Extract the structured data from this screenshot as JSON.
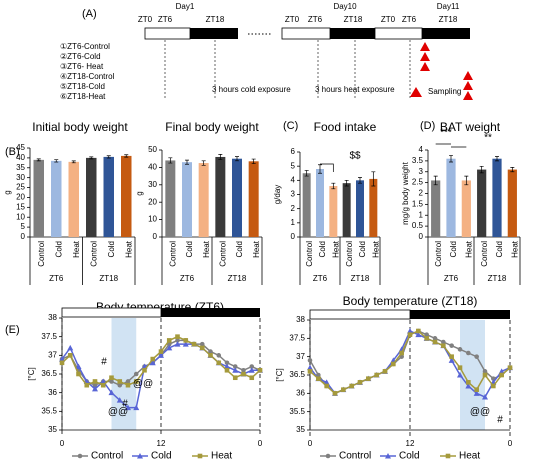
{
  "schedule": {
    "label": "(A)",
    "days": [
      "Day1",
      "Day10",
      "Day11"
    ],
    "zt_labels": [
      "ZT0",
      "ZT6",
      "ZT18",
      "ZT0",
      "ZT6",
      "ZT18",
      "ZT0",
      "ZT6",
      "ZT18"
    ],
    "groups": [
      "①ZT6-Control",
      "②ZT6-Cold",
      "③ZT6- Heat",
      "④ZT18-Control",
      "⑤ZT18-Cold",
      "⑥ZT18-Heat"
    ],
    "notes": [
      "3 hours cold exposure",
      "3 hours heat exposure"
    ],
    "legend": "Sampling"
  },
  "chart_data": [
    {
      "type": "bar",
      "panel": "(B)",
      "title": "Initial body weight",
      "y_label": "g",
      "categories": [
        "Control",
        "Cold",
        "Heat",
        "Control",
        "Cold",
        "Heat"
      ],
      "groups": [
        "ZT6",
        "ZT18"
      ],
      "values": [
        39,
        38.5,
        38,
        40,
        40.5,
        41
      ],
      "errors": [
        0.5,
        0.6,
        0.5,
        0.5,
        0.6,
        0.6
      ],
      "colors": [
        "#7f7f7f",
        "#9db8e0",
        "#f4b183",
        "#3a3a3a",
        "#2f5597",
        "#c55a11"
      ],
      "ylim": [
        0,
        45
      ],
      "yticks": [
        0,
        5,
        10,
        15,
        20,
        25,
        30,
        35,
        40,
        45
      ],
      "annotations": []
    },
    {
      "type": "bar",
      "title": "Final body weight",
      "y_label": "g",
      "categories": [
        "Control",
        "Cold",
        "Heat",
        "Control",
        "Cold",
        "Heat"
      ],
      "groups": [
        "ZT6",
        "ZT18"
      ],
      "values": [
        44,
        43,
        42.5,
        46,
        45,
        43.5
      ],
      "errors": [
        1.5,
        1.2,
        1.3,
        1.5,
        1.2,
        1.3
      ],
      "colors": [
        "#7f7f7f",
        "#9db8e0",
        "#f4b183",
        "#3a3a3a",
        "#2f5597",
        "#c55a11"
      ],
      "ylim": [
        0,
        50
      ],
      "yticks": [
        0,
        10,
        20,
        30,
        40,
        50
      ],
      "annotations": []
    },
    {
      "type": "bar",
      "panel": "(C)",
      "title": "Food intake",
      "y_label": "g/day",
      "categories": [
        "Control",
        "Cold",
        "Heat",
        "Control",
        "Cold",
        "Heat"
      ],
      "groups": [
        "ZT6",
        "ZT18"
      ],
      "values": [
        4.5,
        4.8,
        3.6,
        3.8,
        4.0,
        4.1
      ],
      "errors": [
        0.2,
        0.3,
        0.2,
        0.2,
        0.2,
        0.5
      ],
      "colors": [
        "#7f7f7f",
        "#9db8e0",
        "#f4b183",
        "#3a3a3a",
        "#2f5597",
        "#c55a11"
      ],
      "ylim": [
        0,
        6
      ],
      "yticks": [
        0,
        1,
        2,
        3,
        4,
        5,
        6
      ],
      "annotations": [
        "$$"
      ]
    },
    {
      "type": "bar",
      "panel": "(D)",
      "title": "BAT weight",
      "y_label": "mg/g body weight",
      "categories": [
        "Control",
        "Cold",
        "Heat",
        "Control",
        "Cold",
        "Heat"
      ],
      "groups": [
        "ZT6",
        "ZT18"
      ],
      "values": [
        2.6,
        3.6,
        2.6,
        3.1,
        3.6,
        3.1
      ],
      "errors": [
        0.2,
        0.15,
        0.2,
        0.15,
        0.1,
        0.1
      ],
      "colors": [
        "#7f7f7f",
        "#9db8e0",
        "#f4b183",
        "#3a3a3a",
        "#2f5597",
        "#c55a11"
      ],
      "ylim": [
        0,
        4
      ],
      "yticks": [
        0,
        0.5,
        1,
        1.5,
        2,
        2.5,
        3,
        3.5,
        4
      ],
      "annotations": [
        "***",
        "**"
      ]
    },
    {
      "type": "line",
      "panel": "(E)",
      "title": "Body temperature (ZT6)",
      "y_label": "[°C]",
      "x": [
        0,
        1,
        2,
        3,
        4,
        5,
        6,
        7,
        8,
        9,
        10,
        11,
        12,
        13,
        14,
        15,
        16,
        17,
        18,
        19,
        20,
        21,
        22,
        23,
        24
      ],
      "xlim": [
        0,
        24
      ],
      "xticks": [
        0,
        12,
        {
          "value": 24,
          "label": "0"
        }
      ],
      "ylim": [
        35,
        38
      ],
      "yticks": [
        35,
        35.5,
        36,
        36.5,
        37,
        37.5,
        38
      ],
      "exposure": [
        6,
        9
      ],
      "annotations": [
        "#",
        "@@",
        "@@",
        "#"
      ],
      "series": [
        {
          "name": "Control",
          "color": "#808080",
          "marker": "circle",
          "values": [
            36.9,
            37.0,
            36.6,
            36.3,
            36.2,
            36.3,
            36.3,
            36.2,
            36.3,
            36.5,
            36.7,
            36.8,
            37.0,
            37.3,
            37.4,
            37.4,
            37.3,
            37.3,
            37.1,
            37.0,
            36.8,
            36.7,
            36.6,
            36.7,
            36.6
          ]
        },
        {
          "name": "Cold",
          "color": "#5865d6",
          "marker": "triangle",
          "values": [
            36.9,
            37.2,
            36.7,
            36.3,
            36.1,
            36.3,
            36.0,
            35.8,
            35.6,
            35.6,
            36.7,
            36.8,
            37.0,
            37.2,
            37.3,
            37.3,
            37.3,
            37.2,
            37.0,
            36.8,
            36.7,
            36.6,
            36.5,
            36.6,
            36.6
          ]
        },
        {
          "name": "Heat",
          "color": "#a59a3c",
          "marker": "square",
          "values": [
            36.8,
            37.0,
            36.5,
            36.2,
            36.3,
            36.2,
            36.4,
            36.3,
            36.2,
            36.3,
            36.6,
            36.9,
            37.1,
            37.4,
            37.5,
            37.4,
            37.3,
            37.2,
            37.0,
            36.8,
            36.6,
            36.4,
            36.5,
            36.4,
            36.6
          ]
        }
      ]
    },
    {
      "type": "line",
      "title": "Body temperature (ZT18)",
      "y_label": "[°C]",
      "x": [
        0,
        1,
        2,
        3,
        4,
        5,
        6,
        7,
        8,
        9,
        10,
        11,
        12,
        13,
        14,
        15,
        16,
        17,
        18,
        19,
        20,
        21,
        22,
        23,
        24
      ],
      "xlim": [
        0,
        24
      ],
      "xticks": [
        0,
        12,
        {
          "value": 24,
          "label": "0"
        }
      ],
      "ylim": [
        35,
        38
      ],
      "yticks": [
        35,
        35.5,
        36,
        36.5,
        37,
        37.5,
        38
      ],
      "exposure": [
        18,
        21
      ],
      "annotations": [
        "@@",
        "#"
      ],
      "series": [
        {
          "name": "Control",
          "color": "#808080",
          "marker": "circle",
          "values": [
            36.9,
            36.5,
            36.2,
            36.0,
            36.1,
            36.2,
            36.3,
            36.4,
            36.5,
            36.6,
            36.8,
            37.0,
            37.6,
            37.7,
            37.6,
            37.5,
            37.4,
            37.3,
            37.2,
            37.1,
            37.0,
            36.6,
            36.4,
            36.5,
            36.7
          ]
        },
        {
          "name": "Cold",
          "color": "#5865d6",
          "marker": "triangle",
          "values": [
            36.7,
            36.4,
            36.3,
            36.0,
            36.1,
            36.2,
            36.3,
            36.4,
            36.5,
            36.6,
            36.9,
            37.2,
            37.7,
            37.6,
            37.5,
            37.4,
            37.3,
            36.9,
            36.5,
            36.2,
            36.0,
            35.9,
            36.3,
            36.6,
            36.7
          ]
        },
        {
          "name": "Heat",
          "color": "#a59a3c",
          "marker": "square",
          "values": [
            36.6,
            36.4,
            36.2,
            36.0,
            36.1,
            36.2,
            36.3,
            36.4,
            36.5,
            36.6,
            36.8,
            37.1,
            37.6,
            37.7,
            37.5,
            37.4,
            37.3,
            37.0,
            36.7,
            36.3,
            36.1,
            36.5,
            36.2,
            36.5,
            36.7
          ]
        }
      ]
    }
  ]
}
